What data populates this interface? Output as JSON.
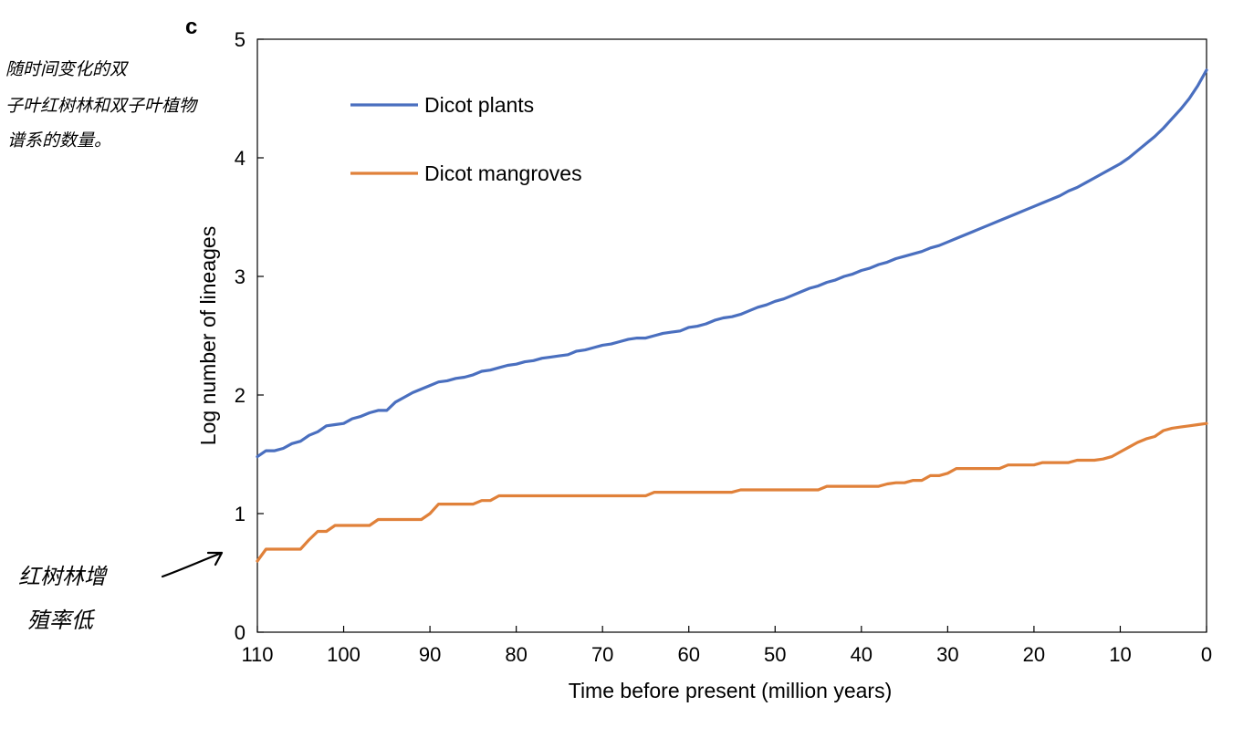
{
  "panel_label": "c",
  "annotations": {
    "top_left_note": [
      "随时间变化的双",
      "子叶红树林和双子叶植物",
      "谱系的数量。"
    ],
    "bottom_left_note": [
      "红树林增",
      "殖率低"
    ]
  },
  "chart_data": {
    "type": "line",
    "title": "",
    "xlabel": "Time before present (million years)",
    "ylabel": "Log number of lineages",
    "xlim": [
      110,
      0
    ],
    "ylim": [
      0,
      5
    ],
    "x_reversed": true,
    "xticks": [
      110,
      100,
      90,
      80,
      70,
      60,
      50,
      40,
      30,
      20,
      10,
      0
    ],
    "yticks": [
      0,
      1,
      2,
      3,
      4,
      5
    ],
    "grid": false,
    "legend_position": "top-left",
    "series": [
      {
        "name": "Dicot plants",
        "color": "#4a6fbf",
        "points": [
          [
            110,
            1.48
          ],
          [
            109,
            1.53
          ],
          [
            108,
            1.53
          ],
          [
            107,
            1.55
          ],
          [
            106,
            1.59
          ],
          [
            105,
            1.61
          ],
          [
            104,
            1.66
          ],
          [
            103,
            1.69
          ],
          [
            102,
            1.74
          ],
          [
            101,
            1.75
          ],
          [
            100,
            1.76
          ],
          [
            99,
            1.8
          ],
          [
            98,
            1.82
          ],
          [
            97,
            1.85
          ],
          [
            96,
            1.87
          ],
          [
            95,
            1.87
          ],
          [
            94,
            1.94
          ],
          [
            93,
            1.98
          ],
          [
            92,
            2.02
          ],
          [
            91,
            2.05
          ],
          [
            90,
            2.08
          ],
          [
            89,
            2.11
          ],
          [
            88,
            2.12
          ],
          [
            87,
            2.14
          ],
          [
            86,
            2.15
          ],
          [
            85,
            2.17
          ],
          [
            84,
            2.2
          ],
          [
            83,
            2.21
          ],
          [
            82,
            2.23
          ],
          [
            81,
            2.25
          ],
          [
            80,
            2.26
          ],
          [
            79,
            2.28
          ],
          [
            78,
            2.29
          ],
          [
            77,
            2.31
          ],
          [
            76,
            2.32
          ],
          [
            75,
            2.33
          ],
          [
            74,
            2.34
          ],
          [
            73,
            2.37
          ],
          [
            72,
            2.38
          ],
          [
            71,
            2.4
          ],
          [
            70,
            2.42
          ],
          [
            69,
            2.43
          ],
          [
            68,
            2.45
          ],
          [
            67,
            2.47
          ],
          [
            66,
            2.48
          ],
          [
            65,
            2.48
          ],
          [
            64,
            2.5
          ],
          [
            63,
            2.52
          ],
          [
            62,
            2.53
          ],
          [
            61,
            2.54
          ],
          [
            60,
            2.57
          ],
          [
            59,
            2.58
          ],
          [
            58,
            2.6
          ],
          [
            57,
            2.63
          ],
          [
            56,
            2.65
          ],
          [
            55,
            2.66
          ],
          [
            54,
            2.68
          ],
          [
            53,
            2.71
          ],
          [
            52,
            2.74
          ],
          [
            51,
            2.76
          ],
          [
            50,
            2.79
          ],
          [
            49,
            2.81
          ],
          [
            48,
            2.84
          ],
          [
            47,
            2.87
          ],
          [
            46,
            2.9
          ],
          [
            45,
            2.92
          ],
          [
            44,
            2.95
          ],
          [
            43,
            2.97
          ],
          [
            42,
            3.0
          ],
          [
            41,
            3.02
          ],
          [
            40,
            3.05
          ],
          [
            39,
            3.07
          ],
          [
            38,
            3.1
          ],
          [
            37,
            3.12
          ],
          [
            36,
            3.15
          ],
          [
            35,
            3.17
          ],
          [
            34,
            3.19
          ],
          [
            33,
            3.21
          ],
          [
            32,
            3.24
          ],
          [
            31,
            3.26
          ],
          [
            30,
            3.29
          ],
          [
            29,
            3.32
          ],
          [
            28,
            3.35
          ],
          [
            27,
            3.38
          ],
          [
            26,
            3.41
          ],
          [
            25,
            3.44
          ],
          [
            24,
            3.47
          ],
          [
            23,
            3.5
          ],
          [
            22,
            3.53
          ],
          [
            21,
            3.56
          ],
          [
            20,
            3.59
          ],
          [
            19,
            3.62
          ],
          [
            18,
            3.65
          ],
          [
            17,
            3.68
          ],
          [
            16,
            3.72
          ],
          [
            15,
            3.75
          ],
          [
            14,
            3.79
          ],
          [
            13,
            3.83
          ],
          [
            12,
            3.87
          ],
          [
            11,
            3.91
          ],
          [
            10,
            3.95
          ],
          [
            9,
            4.0
          ],
          [
            8,
            4.06
          ],
          [
            7,
            4.12
          ],
          [
            6,
            4.18
          ],
          [
            5,
            4.25
          ],
          [
            4,
            4.33
          ],
          [
            3,
            4.41
          ],
          [
            2,
            4.5
          ],
          [
            1,
            4.61
          ],
          [
            0,
            4.74
          ]
        ]
      },
      {
        "name": "Dicot mangroves",
        "color": "#e0813a",
        "points": [
          [
            110,
            0.6
          ],
          [
            109,
            0.7
          ],
          [
            108,
            0.7
          ],
          [
            107,
            0.7
          ],
          [
            106,
            0.7
          ],
          [
            105,
            0.7
          ],
          [
            104,
            0.78
          ],
          [
            103,
            0.85
          ],
          [
            102,
            0.85
          ],
          [
            101,
            0.9
          ],
          [
            100,
            0.9
          ],
          [
            99,
            0.9
          ],
          [
            98,
            0.9
          ],
          [
            97,
            0.9
          ],
          [
            96,
            0.95
          ],
          [
            95,
            0.95
          ],
          [
            94,
            0.95
          ],
          [
            93,
            0.95
          ],
          [
            92,
            0.95
          ],
          [
            91,
            0.95
          ],
          [
            90,
            1.0
          ],
          [
            89,
            1.08
          ],
          [
            88,
            1.08
          ],
          [
            87,
            1.08
          ],
          [
            86,
            1.08
          ],
          [
            85,
            1.08
          ],
          [
            84,
            1.11
          ],
          [
            83,
            1.11
          ],
          [
            82,
            1.15
          ],
          [
            81,
            1.15
          ],
          [
            80,
            1.15
          ],
          [
            75,
            1.15
          ],
          [
            70,
            1.15
          ],
          [
            66,
            1.15
          ],
          [
            65,
            1.15
          ],
          [
            64,
            1.18
          ],
          [
            60,
            1.18
          ],
          [
            55,
            1.18
          ],
          [
            54,
            1.2
          ],
          [
            50,
            1.2
          ],
          [
            45,
            1.2
          ],
          [
            44,
            1.23
          ],
          [
            40,
            1.23
          ],
          [
            38,
            1.23
          ],
          [
            37,
            1.25
          ],
          [
            36,
            1.26
          ],
          [
            35,
            1.26
          ],
          [
            34,
            1.28
          ],
          [
            33,
            1.28
          ],
          [
            32,
            1.32
          ],
          [
            31,
            1.32
          ],
          [
            30,
            1.34
          ],
          [
            29,
            1.38
          ],
          [
            28,
            1.38
          ],
          [
            25,
            1.38
          ],
          [
            24,
            1.38
          ],
          [
            23,
            1.41
          ],
          [
            20,
            1.41
          ],
          [
            19,
            1.43
          ],
          [
            16,
            1.43
          ],
          [
            15,
            1.45
          ],
          [
            13,
            1.45
          ],
          [
            12,
            1.46
          ],
          [
            11,
            1.48
          ],
          [
            10,
            1.52
          ],
          [
            9,
            1.56
          ],
          [
            8,
            1.6
          ],
          [
            7,
            1.63
          ],
          [
            6,
            1.65
          ],
          [
            5,
            1.7
          ],
          [
            4,
            1.72
          ],
          [
            3,
            1.73
          ],
          [
            2,
            1.74
          ],
          [
            1,
            1.75
          ],
          [
            0,
            1.76
          ]
        ]
      }
    ]
  }
}
